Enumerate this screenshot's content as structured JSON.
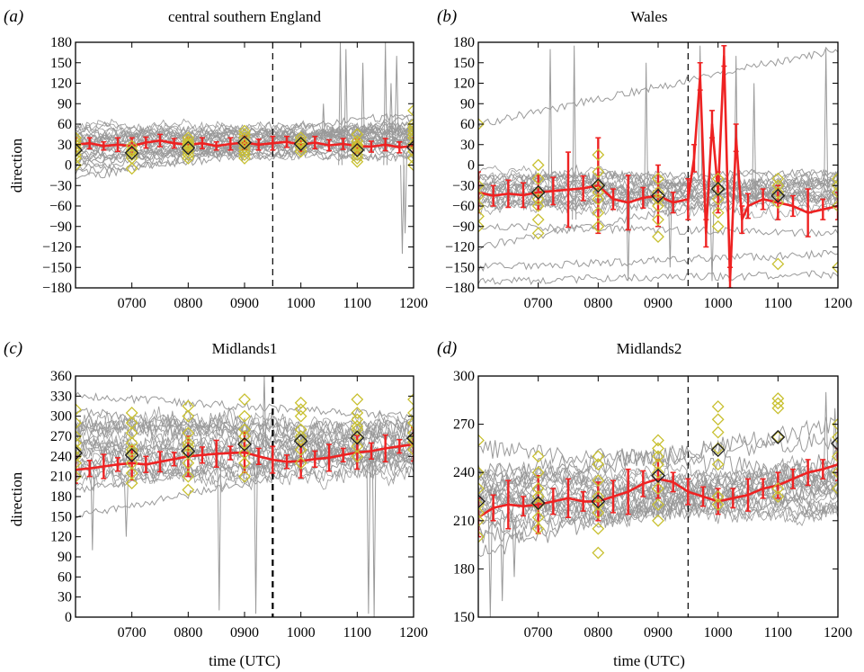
{
  "chart_data": [
    {
      "type": "line",
      "panel_label": "(a)",
      "title": "central southern England",
      "ylabel": "direction",
      "xlabel": "",
      "xlim": [
        600,
        1200
      ],
      "ylim": [
        -180,
        180
      ],
      "yticks": [
        -180,
        -150,
        -120,
        -90,
        -60,
        -30,
        0,
        30,
        60,
        90,
        120,
        150,
        180
      ],
      "xticks": [
        700,
        800,
        900,
        1000,
        1100,
        1200
      ],
      "xtick_labels": [
        "0700",
        "0800",
        "0900",
        "1000",
        "1100",
        "1200"
      ],
      "vline_x": 950,
      "vline_style": "dashed",
      "grey_band": [
        35,
        20
      ],
      "grey_trends": [
        [
          -20,
          70
        ],
        [
          -5,
          45
        ],
        [
          5,
          55
        ],
        [
          15,
          40
        ],
        [
          -10,
          35
        ],
        [
          20,
          75
        ],
        [
          25,
          10
        ],
        [
          0,
          60
        ],
        [
          10,
          25
        ],
        [
          30,
          50
        ]
      ],
      "spikes": [
        [
          1070,
          180,
          0
        ],
        [
          1080,
          170,
          10
        ],
        [
          1110,
          150,
          20
        ],
        [
          1150,
          180,
          0
        ],
        [
          1160,
          120,
          30
        ],
        [
          1170,
          160,
          40
        ],
        [
          1180,
          -130,
          0
        ],
        [
          1185,
          -100,
          20
        ],
        [
          1040,
          90,
          30
        ]
      ],
      "red_series": {
        "x": [
          600,
          625,
          650,
          675,
          700,
          725,
          750,
          775,
          800,
          825,
          850,
          875,
          900,
          925,
          950,
          975,
          1000,
          1025,
          1050,
          1075,
          1100,
          1125,
          1150,
          1175,
          1200
        ],
        "y": [
          30,
          32,
          28,
          30,
          28,
          33,
          36,
          32,
          30,
          32,
          28,
          31,
          33,
          30,
          32,
          34,
          30,
          33,
          29,
          31,
          28,
          27,
          30,
          26,
          28
        ],
        "err": [
          10,
          8,
          6,
          10,
          12,
          8,
          9,
          7,
          10,
          8,
          6,
          9,
          10,
          8,
          10,
          8,
          10,
          9,
          8,
          8,
          10,
          8,
          9,
          8,
          12
        ]
      },
      "yellow_markers": [
        {
          "x": 600,
          "values": [
            40,
            30,
            20,
            10,
            0,
            25,
            15,
            35
          ]
        },
        {
          "x": 700,
          "values": [
            28,
            20,
            10,
            -5,
            22,
            15
          ]
        },
        {
          "x": 800,
          "values": [
            40,
            35,
            30,
            25,
            20,
            15,
            10,
            32,
            28
          ]
        },
        {
          "x": 900,
          "values": [
            50,
            40,
            35,
            30,
            25,
            20,
            15,
            10,
            45
          ]
        },
        {
          "x": 1000,
          "values": [
            40,
            35,
            30,
            25,
            20,
            32
          ]
        },
        {
          "x": 1100,
          "values": [
            45,
            35,
            30,
            25,
            20,
            15,
            10,
            5,
            28
          ]
        },
        {
          "x": 1200,
          "values": [
            80,
            60,
            50,
            40,
            30,
            20,
            10,
            0,
            55,
            45
          ]
        }
      ],
      "black_markers": {
        "x": [
          600,
          700,
          800,
          900,
          1000,
          1100,
          1200
        ],
        "y": [
          22,
          18,
          25,
          33,
          31,
          22,
          26
        ]
      }
    },
    {
      "type": "line",
      "panel_label": "(b)",
      "title": "Wales",
      "ylabel": "",
      "xlabel": "",
      "xlim": [
        600,
        1200
      ],
      "ylim": [
        -180,
        180
      ],
      "yticks": [
        -180,
        -150,
        -120,
        -90,
        -60,
        -30,
        0,
        30,
        60,
        90,
        120,
        150,
        180
      ],
      "xticks": [
        700,
        800,
        900,
        1000,
        1100,
        1200
      ],
      "xtick_labels": [
        "0700",
        "0800",
        "0900",
        "1000",
        "1100",
        "1200"
      ],
      "vline_x": 950,
      "vline_style": "dashed",
      "grey_band": [
        -40,
        25
      ],
      "grey_trends": [
        [
          60,
          170
        ],
        [
          -170,
          -160
        ],
        [
          -120,
          -20
        ],
        [
          -60,
          -40
        ],
        [
          -20,
          -10
        ],
        [
          -90,
          -100
        ],
        [
          -30,
          -50
        ],
        [
          -150,
          -130
        ]
      ],
      "spikes": [
        [
          720,
          170,
          -60
        ],
        [
          760,
          175,
          -80
        ],
        [
          850,
          -170,
          -40
        ],
        [
          880,
          150,
          -60
        ],
        [
          920,
          -150,
          -30
        ],
        [
          970,
          175,
          -20
        ],
        [
          990,
          -170,
          -60
        ],
        [
          1030,
          160,
          -50
        ],
        [
          1060,
          120,
          -50
        ],
        [
          1180,
          170,
          -40
        ]
      ],
      "red_series": {
        "x": [
          600,
          625,
          650,
          675,
          700,
          725,
          750,
          775,
          800,
          825,
          850,
          875,
          900,
          925,
          950,
          960,
          970,
          980,
          990,
          1000,
          1010,
          1020,
          1030,
          1040,
          1050,
          1075,
          1100,
          1125,
          1150,
          1175,
          1200
        ],
        "y": [
          -40,
          -45,
          -42,
          -44,
          -40,
          -38,
          -36,
          -34,
          -30,
          -50,
          -55,
          -48,
          -45,
          -55,
          -50,
          10,
          130,
          -100,
          60,
          -40,
          160,
          -170,
          40,
          -80,
          -60,
          -50,
          -55,
          -60,
          -70,
          -65,
          -60
        ],
        "err": [
          30,
          15,
          20,
          18,
          25,
          20,
          55,
          18,
          70,
          15,
          40,
          15,
          45,
          15,
          30,
          20,
          20,
          20,
          20,
          30,
          15,
          20,
          20,
          20,
          18,
          15,
          25,
          15,
          35,
          15,
          20
        ]
      },
      "yellow_markers": [
        {
          "x": 600,
          "values": [
            -30,
            -45,
            -60,
            -75,
            60,
            -90
          ]
        },
        {
          "x": 700,
          "values": [
            0,
            -20,
            -40,
            -60,
            -80,
            -100,
            -50
          ]
        },
        {
          "x": 800,
          "values": [
            15,
            -10,
            -30,
            -50,
            -70,
            -90,
            -40
          ]
        },
        {
          "x": 900,
          "values": [
            -20,
            -40,
            -60,
            -80,
            -105,
            -50
          ]
        },
        {
          "x": 1000,
          "values": [
            -20,
            -35,
            -50,
            -90,
            -70
          ]
        },
        {
          "x": 1100,
          "values": [
            -20,
            -40,
            -55,
            -145,
            -30
          ]
        },
        {
          "x": 1200,
          "values": [
            -20,
            -40,
            -60,
            -150,
            -30
          ]
        }
      ],
      "black_markers": {
        "x": [
          700,
          800,
          900,
          1000,
          1100
        ],
        "y": [
          -40,
          -30,
          -45,
          -35,
          -45
        ]
      }
    },
    {
      "type": "line",
      "panel_label": "(c)",
      "title": "Midlands1",
      "ylabel": "direction",
      "xlabel": "time (UTC)",
      "xlim": [
        600,
        1200
      ],
      "ylim": [
        0,
        360
      ],
      "yticks": [
        0,
        30,
        60,
        90,
        120,
        150,
        180,
        210,
        240,
        270,
        300,
        330,
        360
      ],
      "xticks": [
        700,
        800,
        900,
        1000,
        1100,
        1200
      ],
      "xtick_labels": [
        "0700",
        "0800",
        "0900",
        "1000",
        "1100",
        "1200"
      ],
      "vline_x": 950,
      "vline_style": "dashed-bold",
      "grey_band": [
        250,
        40
      ],
      "grey_trends": [
        [
          190,
          260
        ],
        [
          210,
          240
        ],
        [
          310,
          240
        ],
        [
          330,
          300
        ],
        [
          280,
          290
        ],
        [
          230,
          270
        ],
        [
          150,
          250
        ],
        [
          260,
          230
        ]
      ],
      "spikes": [
        [
          630,
          100,
          230
        ],
        [
          690,
          120,
          200
        ],
        [
          855,
          10,
          240
        ],
        [
          920,
          5,
          250
        ],
        [
          935,
          360,
          250
        ],
        [
          1120,
          5,
          240
        ],
        [
          1130,
          0,
          250
        ]
      ],
      "red_series": {
        "x": [
          600,
          625,
          650,
          675,
          700,
          725,
          750,
          775,
          800,
          825,
          850,
          875,
          900,
          925,
          950,
          975,
          1000,
          1025,
          1050,
          1075,
          1100,
          1125,
          1150,
          1175,
          1200
        ],
        "y": [
          220,
          222,
          225,
          228,
          230,
          228,
          232,
          236,
          240,
          242,
          244,
          245,
          246,
          240,
          235,
          232,
          233,
          236,
          238,
          242,
          246,
          248,
          252,
          255,
          258
        ],
        "err": [
          20,
          12,
          18,
          10,
          25,
          12,
          15,
          10,
          30,
          12,
          20,
          10,
          30,
          12,
          20,
          10,
          25,
          12,
          20,
          10,
          25,
          12,
          20,
          10,
          25
        ]
      },
      "yellow_markers": [
        {
          "x": 600,
          "values": [
            210,
            230,
            250,
            270,
            290,
            310,
            260,
            240
          ]
        },
        {
          "x": 700,
          "values": [
            200,
            215,
            230,
            245,
            260,
            275,
            290,
            305,
            250
          ]
        },
        {
          "x": 800,
          "values": [
            190,
            210,
            230,
            245,
            260,
            275,
            300,
            315,
            255
          ]
        },
        {
          "x": 900,
          "values": [
            210,
            230,
            245,
            260,
            280,
            300,
            325,
            270
          ]
        },
        {
          "x": 1000,
          "values": [
            230,
            250,
            265,
            280,
            300,
            310,
            320,
            270
          ]
        },
        {
          "x": 1100,
          "values": [
            240,
            255,
            270,
            285,
            295,
            305,
            325,
            280
          ]
        },
        {
          "x": 1200,
          "values": [
            250,
            262,
            275,
            290,
            305,
            325,
            268
          ]
        }
      ],
      "black_markers": {
        "x": [
          600,
          700,
          800,
          900,
          1000,
          1100,
          1200
        ],
        "y": [
          245,
          242,
          248,
          258,
          263,
          268,
          267
        ]
      }
    },
    {
      "type": "line",
      "panel_label": "(d)",
      "title": "Midlands2",
      "ylabel": "",
      "xlabel": "time (UTC)",
      "xlim": [
        600,
        1200
      ],
      "ylim": [
        150,
        300
      ],
      "yticks": [
        150,
        180,
        210,
        240,
        270,
        300
      ],
      "xticks": [
        700,
        800,
        900,
        1000,
        1100,
        1200
      ],
      "xtick_labels": [
        "0700",
        "0800",
        "0900",
        "1000",
        "1100",
        "1200"
      ],
      "vline_x": 950,
      "vline_style": "dashed",
      "grey_band": [
        225,
        14
      ],
      "grey_trends": [
        [
          190,
          250
        ],
        [
          205,
          235
        ],
        [
          240,
          260
        ],
        [
          215,
          245
        ],
        [
          230,
          270
        ],
        [
          200,
          230
        ],
        [
          255,
          240
        ]
      ],
      "spikes": [
        [
          620,
          150,
          215
        ],
        [
          640,
          160,
          210
        ],
        [
          660,
          175,
          212
        ],
        [
          1180,
          290,
          245
        ],
        [
          1195,
          280,
          248
        ]
      ],
      "red_series": {
        "x": [
          600,
          625,
          650,
          675,
          700,
          725,
          750,
          775,
          800,
          825,
          850,
          875,
          900,
          925,
          950,
          975,
          1000,
          1025,
          1050,
          1075,
          1100,
          1125,
          1150,
          1175,
          1200
        ],
        "y": [
          212,
          218,
          220,
          219,
          220,
          222,
          224,
          222,
          222,
          225,
          228,
          233,
          236,
          234,
          228,
          225,
          222,
          224,
          226,
          230,
          232,
          236,
          240,
          242,
          245
        ],
        "err": [
          12,
          8,
          15,
          6,
          18,
          8,
          12,
          6,
          12,
          10,
          14,
          8,
          12,
          6,
          8,
          6,
          8,
          6,
          10,
          6,
          8,
          6,
          8,
          6,
          10
        ]
      },
      "yellow_markers": [
        {
          "x": 600,
          "values": [
            200,
            210,
            220,
            230,
            240,
            260,
            215
          ]
        },
        {
          "x": 700,
          "values": [
            205,
            212,
            220,
            230,
            240,
            250,
            225
          ]
        },
        {
          "x": 800,
          "values": [
            190,
            205,
            215,
            225,
            235,
            245,
            250,
            220
          ]
        },
        {
          "x": 900,
          "values": [
            210,
            220,
            230,
            240,
            250,
            255,
            260,
            245
          ]
        },
        {
          "x": 1000,
          "values": [
            220,
            225,
            245,
            255,
            265,
            273,
            281
          ]
        },
        {
          "x": 1100,
          "values": [
            225,
            230,
            262,
            280,
            283,
            286
          ]
        },
        {
          "x": 1200,
          "values": [
            230,
            240,
            250,
            262,
            270
          ]
        }
      ],
      "black_markers": {
        "x": [
          600,
          700,
          800,
          900,
          1000,
          1100,
          1200
        ],
        "y": [
          222,
          221,
          222,
          238,
          254,
          262,
          258
        ]
      }
    }
  ]
}
